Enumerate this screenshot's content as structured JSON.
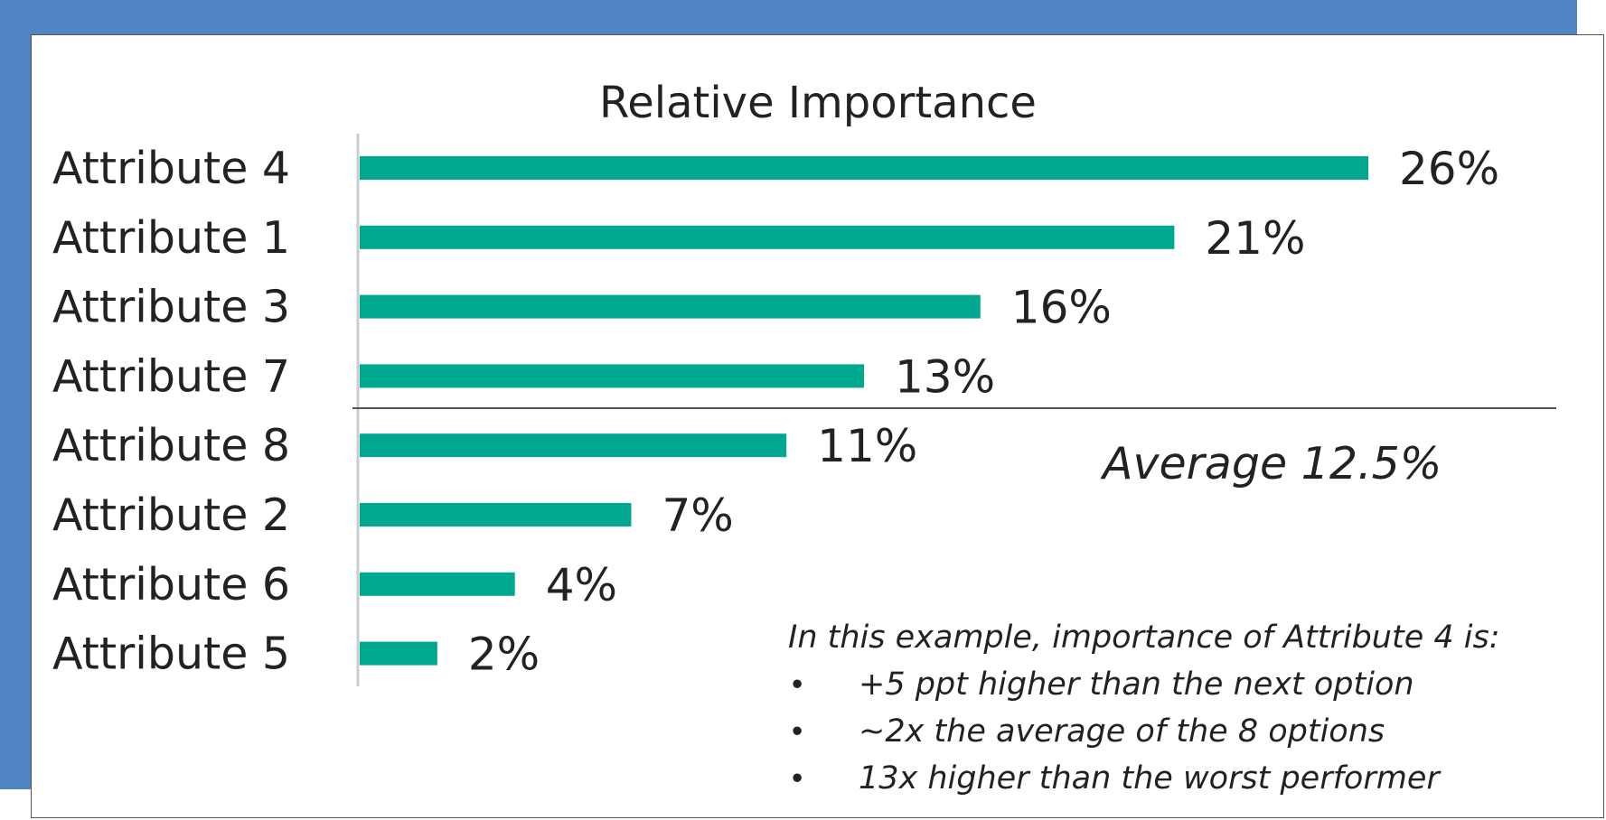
{
  "colors": {
    "bar": "#00a88f",
    "frame_bg": "#4f85c5",
    "text": "#222222",
    "axis": "#cccccc",
    "average_line": "#555555"
  },
  "chart_data": {
    "type": "bar",
    "orientation": "horizontal",
    "title": "Relative Importance",
    "categories": [
      "Attribute 4",
      "Attribute 1",
      "Attribute 3",
      "Attribute 7",
      "Attribute 8",
      "Attribute 2",
      "Attribute 6",
      "Attribute 5"
    ],
    "values": [
      26,
      21,
      16,
      13,
      11,
      7,
      4,
      2
    ],
    "value_labels": [
      "26%",
      "21%",
      "16%",
      "13%",
      "11%",
      "7%",
      "4%",
      "2%"
    ],
    "unit": "%",
    "xlim": [
      0,
      26
    ],
    "average": 12.5,
    "average_label": "Average 12.5%"
  },
  "note": {
    "heading": "In this example, importance of Attribute 4 is:",
    "bullet_symbol": "•",
    "bullets": [
      "+5 ppt higher than the next option",
      "~2x the average of the 8 options",
      "13x higher than the worst performer"
    ]
  }
}
